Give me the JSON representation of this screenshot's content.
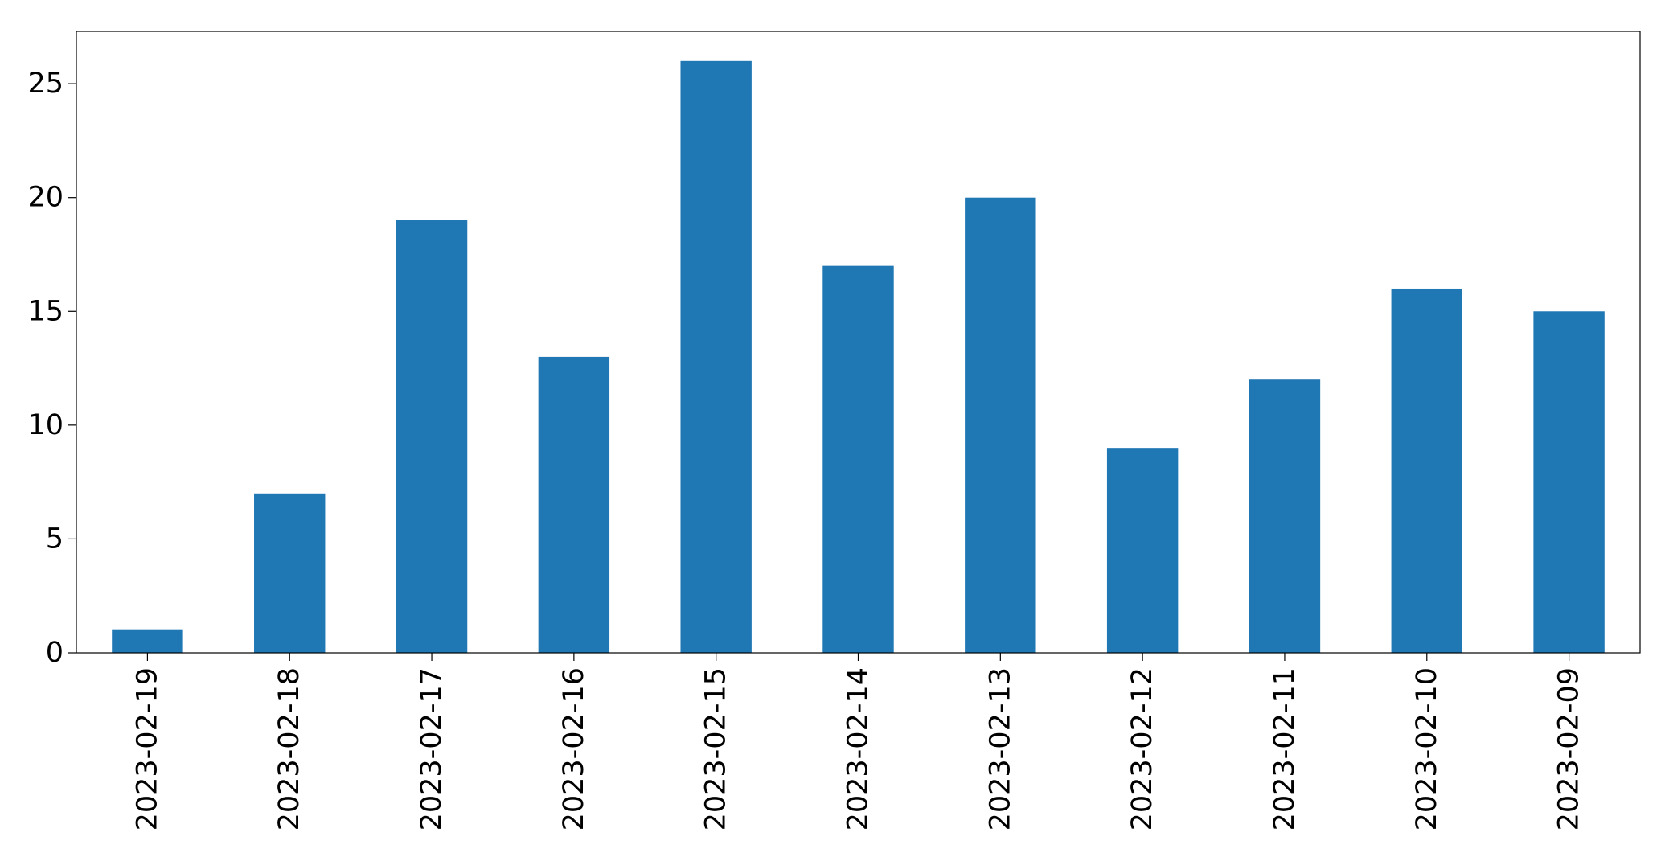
{
  "chart_data": {
    "type": "bar",
    "title": "",
    "xlabel": "",
    "ylabel": "",
    "categories": [
      "2023-02-19",
      "2023-02-18",
      "2023-02-17",
      "2023-02-16",
      "2023-02-15",
      "2023-02-14",
      "2023-02-13",
      "2023-02-12",
      "2023-02-11",
      "2023-02-10",
      "2023-02-09"
    ],
    "values": [
      1,
      7,
      19,
      13,
      26,
      17,
      20,
      9,
      12,
      16,
      15
    ],
    "ylim": [
      0,
      27.3
    ],
    "yticks": [
      0,
      5,
      10,
      15,
      20,
      25
    ],
    "grid": false,
    "legend": "none",
    "colors": {
      "bar": "#1f77b4",
      "axis": "#000000",
      "background": "#ffffff"
    }
  }
}
